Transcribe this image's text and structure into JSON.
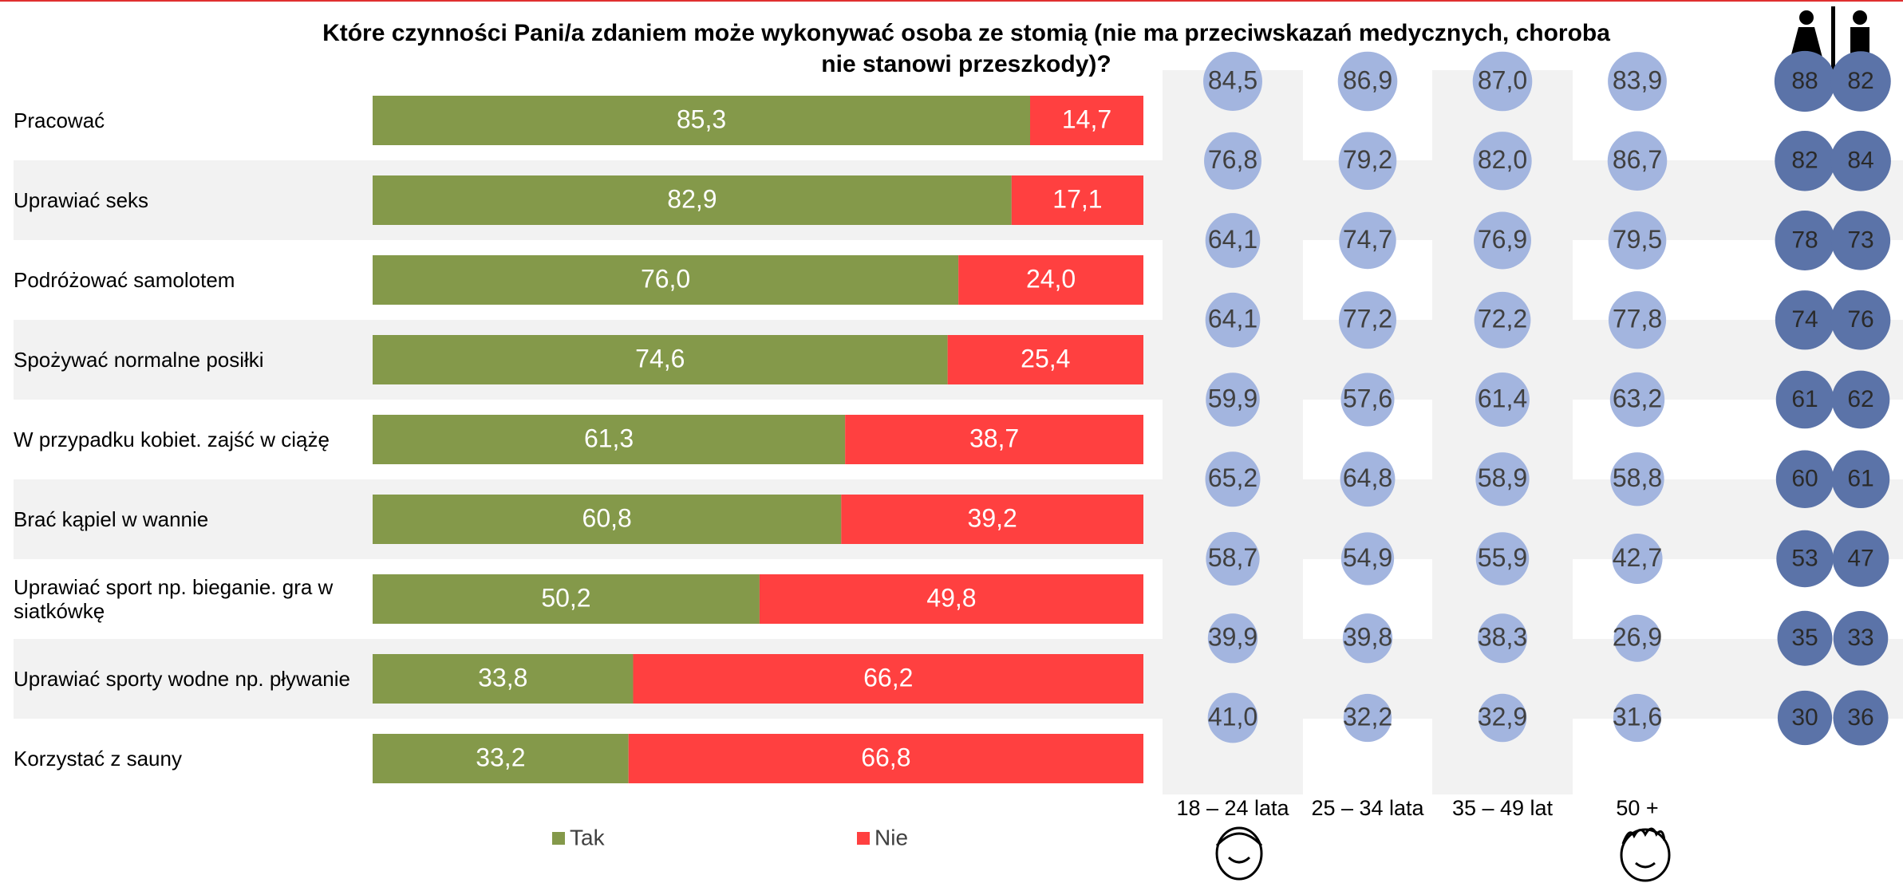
{
  "chart_data": [
    {
      "type": "bar",
      "stacked": true,
      "orientation": "horizontal",
      "title": "Które czynności Pani/a zdaniem może wykonywać osoba ze stomią (nie ma przeciwskazań medycznych, choroba nie stanowi przeszkody)?",
      "categories": [
        "Pracować",
        "Uprawiać seks",
        "Podróżować samolotem",
        "Spożywać normalne posiłki",
        "W przypadku kobiet. zajść w ciążę",
        "Brać kąpiel w wannie",
        "Uprawiać sport np. bieganie. gra w siatkówkę",
        "Uprawiać sporty wodne np. pływanie",
        "Korzystać z sauny"
      ],
      "xlim": [
        0,
        100
      ],
      "series": [
        {
          "name": "Tak",
          "color": "#84994a",
          "values": [
            85.3,
            82.9,
            76.0,
            74.6,
            61.3,
            60.8,
            50.2,
            33.8,
            33.2
          ],
          "value_labels": [
            "85,3",
            "82,9",
            "76,0",
            "74,6",
            "61,3",
            "60,8",
            "50,2",
            "33,8",
            "33,2"
          ]
        },
        {
          "name": "Nie",
          "color": "#ff4040",
          "values": [
            14.7,
            17.1,
            24.0,
            25.4,
            38.7,
            39.2,
            49.8,
            66.2,
            66.8
          ],
          "value_labels": [
            "14,7",
            "17,1",
            "24,0",
            "25,4",
            "38,7",
            "39,2",
            "49,8",
            "66,2",
            "66,8"
          ]
        }
      ]
    },
    {
      "type": "bubble",
      "series": [
        {
          "name": "18 – 24 lata",
          "color": "#a3b5df",
          "values": [
            84.5,
            76.8,
            64.1,
            64.1,
            59.9,
            65.2,
            58.7,
            39.9,
            41.0
          ],
          "value_labels": [
            "84,5",
            "76,8",
            "64,1",
            "64,1",
            "59,9",
            "65,2",
            "58,7",
            "39,9",
            "41,0"
          ]
        },
        {
          "name": "25 – 34 lata",
          "color": "#a3b5df",
          "values": [
            86.9,
            79.2,
            74.7,
            77.2,
            57.6,
            64.8,
            54.9,
            39.8,
            32.2
          ],
          "value_labels": [
            "86,9",
            "79,2",
            "74,7",
            "77,2",
            "57,6",
            "64,8",
            "54,9",
            "39,8",
            "32,2"
          ]
        },
        {
          "name": "35 – 49 lat",
          "color": "#a3b5df",
          "values": [
            87.0,
            82.0,
            76.9,
            72.2,
            61.4,
            58.9,
            55.9,
            38.3,
            32.9
          ],
          "value_labels": [
            "87,0",
            "82,0",
            "76,9",
            "72,2",
            "61,4",
            "58,9",
            "55,9",
            "38,3",
            "32,9"
          ]
        },
        {
          "name": "50 +",
          "color": "#a3b5df",
          "values": [
            83.9,
            86.7,
            79.5,
            77.8,
            63.2,
            58.8,
            42.7,
            26.9,
            31.6
          ],
          "value_labels": [
            "83,9",
            "86,7",
            "79,5",
            "77,8",
            "63,2",
            "58,8",
            "42,7",
            "26,9",
            "31,6"
          ]
        }
      ]
    },
    {
      "type": "bubble",
      "series": [
        {
          "color": "#5b73a8",
          "values": [
            88,
            82,
            78,
            74,
            61,
            60,
            53,
            35,
            30
          ]
        },
        {
          "color": "#5b73a8",
          "values": [
            82,
            84,
            73,
            76,
            62,
            61,
            47,
            33,
            36
          ]
        }
      ]
    }
  ]
}
